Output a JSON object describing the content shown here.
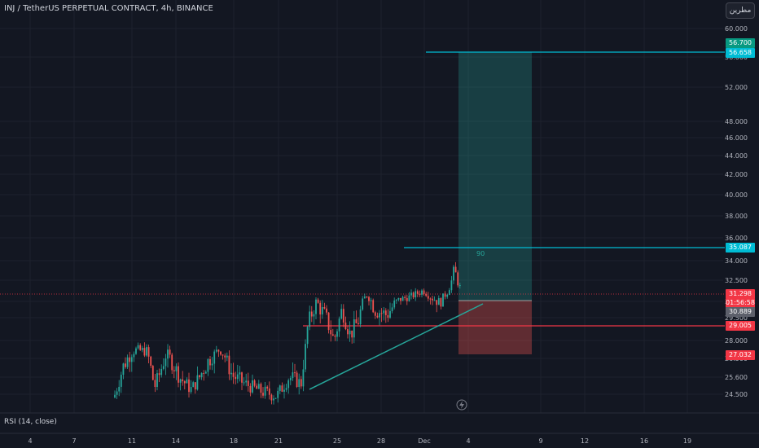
{
  "header": {
    "title": "INJ / TetherUS PERPETUAL CONTRACT, 4h, BINANCE",
    "brand_button": "مطرين"
  },
  "y_axis": {
    "labels": [
      "60.000",
      "56.000",
      "52.000",
      "48.000",
      "46.000",
      "44.000",
      "42.000",
      "40.000",
      "38.000",
      "36.000",
      "34.000",
      "32.500",
      "30.000",
      "29.500",
      "28.000",
      "26.500",
      "25.600",
      "24.500"
    ]
  },
  "x_axis": {
    "labels": [
      "4",
      "7",
      "11",
      "14",
      "18",
      "21",
      "25",
      "28",
      "Dec",
      "4",
      "9",
      "12",
      "16",
      "19"
    ]
  },
  "price_tags": {
    "tp_label": "56.700",
    "tp_value": "56.658",
    "entry_value": "35.087",
    "last_price": "31.298",
    "countdown": "01:56:58",
    "current_price": "30.889",
    "support_value": "29.005",
    "sl_value": "27.032"
  },
  "position_label": "90",
  "rsi": {
    "label": "RSI (14, close)"
  },
  "colors": {
    "background": "#131722",
    "up": "#26a69a",
    "down": "#ef5350",
    "cyan": "#00bcd4",
    "red_line": "#f23645",
    "text": "#d1d4dc"
  },
  "chart_data": {
    "type": "candlestick",
    "levels": {
      "tp": 56.658,
      "entry": 35.087,
      "support": 29.005,
      "sl": 27.032,
      "last": 31.298
    },
    "candles_close_approx": [
      24.5,
      25.8,
      27.1,
      27.3,
      25.1,
      26.8,
      25.9,
      24.9,
      26.2,
      27.2,
      25.6,
      24.9,
      24.6,
      25.5,
      26.1,
      29.6,
      30.1,
      29.0,
      28.4,
      29.3,
      28.6,
      30.5,
      29.2,
      30.2,
      31.3,
      29.8,
      30.5,
      29.0,
      30.9
    ]
  }
}
